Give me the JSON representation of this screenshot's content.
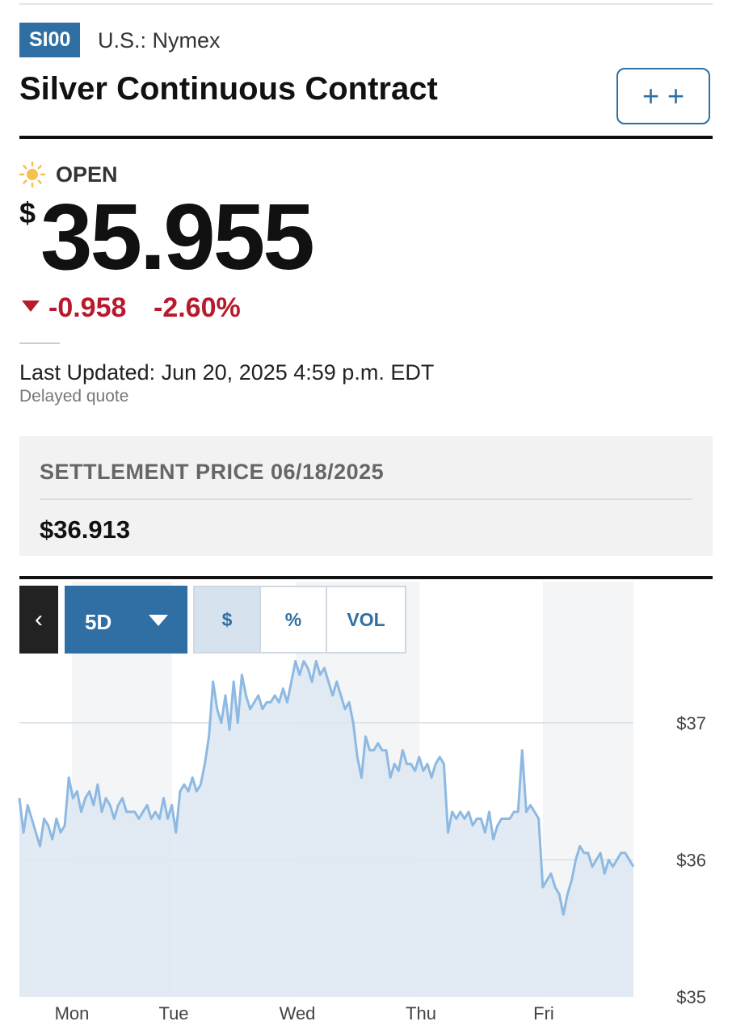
{
  "header": {
    "ticker": "SI00",
    "exchange": "U.S.: Nymex",
    "title": "Silver Continuous Contract",
    "watchlist_label": "+ +"
  },
  "quote": {
    "status": "OPEN",
    "status_icon": "sun-icon",
    "currency_symbol": "$",
    "price": "35.955",
    "change": "-0.958",
    "change_percent": "-2.60%",
    "direction": "down",
    "last_updated": "Last Updated: Jun 20, 2025 4:59 p.m. EDT",
    "delay_note": "Delayed quote"
  },
  "settlement": {
    "label": "SETTLEMENT PRICE 06/18/2025",
    "value": "$36.913"
  },
  "chart_controls": {
    "back_icon": "chevron-left-icon",
    "range": "5D",
    "modes": [
      "$",
      "%",
      "VOL"
    ],
    "active_mode": "$"
  },
  "colors": {
    "accent": "#2f6fa3",
    "negative": "#b8192c",
    "line": "#8db9e2",
    "area": "#dde8f1"
  },
  "chart_data": {
    "type": "area",
    "x_labels": [
      "Mon",
      "Tue",
      "Wed",
      "Thu",
      "Fri"
    ],
    "y_ticks": [
      "$35",
      "$36",
      "$37"
    ],
    "ylim": [
      35,
      37.5
    ],
    "grid": true,
    "series": [
      {
        "values": [
          36.45,
          36.2,
          36.4,
          36.3,
          36.2,
          36.1,
          36.3,
          36.25,
          36.15,
          36.3,
          36.2,
          36.25,
          36.6,
          36.45,
          36.5,
          36.35,
          36.45,
          36.5,
          36.4,
          36.55,
          36.35,
          36.45,
          36.4,
          36.3,
          36.4,
          36.45,
          36.35,
          36.35,
          36.35,
          36.3,
          36.35,
          36.4,
          36.3,
          36.35,
          36.3,
          36.45,
          36.3,
          36.4,
          36.2,
          36.5,
          36.55,
          36.5,
          36.6,
          36.5,
          36.55,
          36.7,
          36.9,
          37.3,
          37.1,
          37.0,
          37.2,
          36.95,
          37.3,
          37.0,
          37.35,
          37.2,
          37.1,
          37.15,
          37.2,
          37.1,
          37.15,
          37.15,
          37.2,
          37.15,
          37.25,
          37.15,
          37.3,
          37.45,
          37.35,
          37.45,
          37.4,
          37.3,
          37.45,
          37.35,
          37.4,
          37.3,
          37.2,
          37.3,
          37.2,
          37.1,
          37.15,
          37.0,
          36.75,
          36.6,
          36.9,
          36.8,
          36.8,
          36.85,
          36.8,
          36.8,
          36.6,
          36.7,
          36.65,
          36.8,
          36.7,
          36.7,
          36.65,
          36.75,
          36.65,
          36.7,
          36.6,
          36.7,
          36.75,
          36.7,
          36.2,
          36.35,
          36.3,
          36.35,
          36.3,
          36.35,
          36.25,
          36.3,
          36.3,
          36.2,
          36.35,
          36.15,
          36.25,
          36.3,
          36.3,
          36.3,
          36.35,
          36.35,
          36.8,
          36.35,
          36.4,
          36.35,
          36.3,
          35.8,
          35.85,
          35.9,
          35.8,
          35.75,
          35.6,
          35.75,
          35.85,
          36.0,
          36.1,
          36.05,
          36.05,
          35.95,
          36.0,
          36.05,
          35.9,
          36.0,
          35.95,
          36.0,
          36.05,
          36.05,
          36.0,
          35.95
        ]
      }
    ]
  }
}
